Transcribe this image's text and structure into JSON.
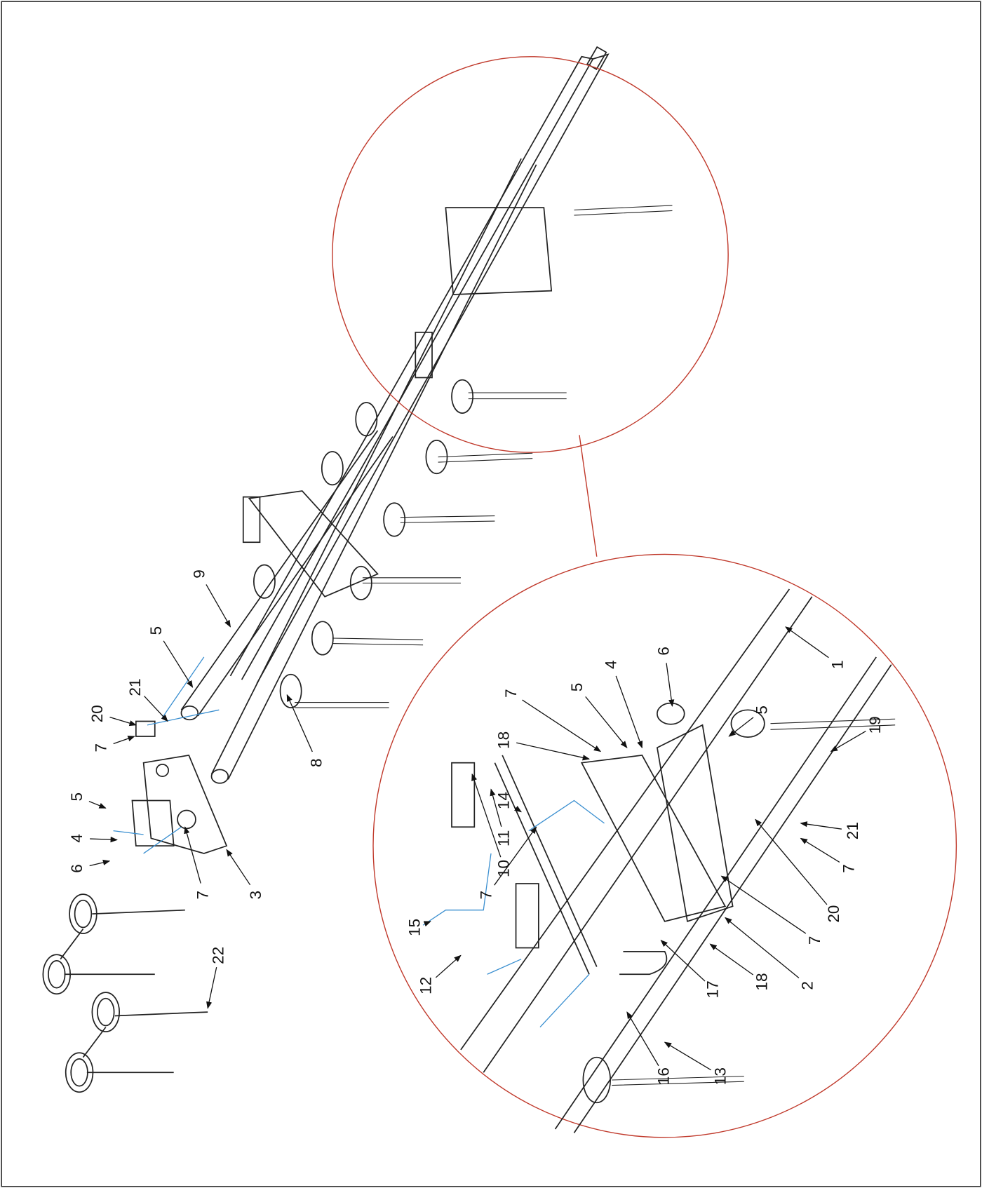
{
  "callouts": [
    "9",
    "5",
    "21",
    "20",
    "7",
    "8",
    "5",
    "4",
    "6",
    "7",
    "3",
    "22",
    "7",
    "5",
    "4",
    "6",
    "1",
    "18",
    "14",
    "11",
    "10",
    "15",
    "12",
    "7",
    "5",
    "19",
    "21",
    "7",
    "20",
    "7",
    "2",
    "18",
    "17",
    "16",
    "13"
  ]
}
